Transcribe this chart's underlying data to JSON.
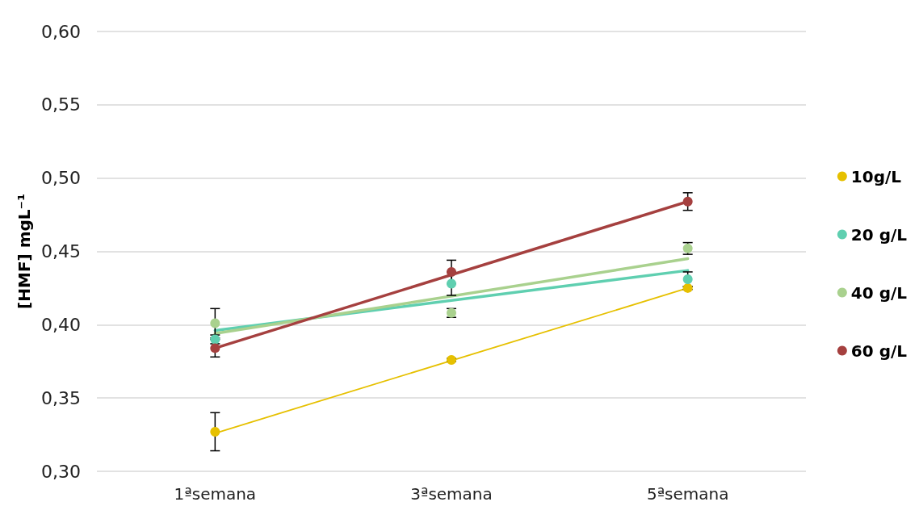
{
  "chart_data": {
    "type": "scatter",
    "ylabel": "[HMF] mgL⁻¹",
    "categories": [
      "1ªsemana",
      "3ªsemana",
      "5ªsemana"
    ],
    "ylim": [
      0.3,
      0.6
    ],
    "yticks": [
      {
        "value": 0.3,
        "label": "0,30"
      },
      {
        "value": 0.35,
        "label": "0,35"
      },
      {
        "value": 0.4,
        "label": "0,40"
      },
      {
        "value": 0.45,
        "label": "0,45"
      },
      {
        "value": 0.5,
        "label": "0,50"
      },
      {
        "value": 0.55,
        "label": "0,55"
      },
      {
        "value": 0.6,
        "label": "0,60"
      }
    ],
    "grid": "y",
    "legend": "right",
    "marker": "circle",
    "series": [
      {
        "name": "10g/L",
        "color": "#e6c000",
        "values": [
          0.327,
          0.376,
          0.425
        ],
        "errors": [
          0.013,
          0.001,
          0.001
        ]
      },
      {
        "name": "20 g/L",
        "color": "#5fcfb0",
        "values": [
          0.39,
          0.428,
          0.431
        ],
        "errors": [
          0.003,
          0.008,
          0.005
        ]
      },
      {
        "name": "40 g/L",
        "color": "#a9d18e",
        "values": [
          0.401,
          0.408,
          0.452
        ],
        "errors": [
          0.01,
          0.003,
          0.004
        ]
      },
      {
        "name": "60 g/L",
        "color": "#a5403f",
        "values": [
          0.384,
          0.436,
          0.484
        ],
        "errors": [
          0.006,
          0.008,
          0.006
        ]
      },
      {
        "type": "line",
        "marker": "none",
        "color": "#e6c000",
        "x": [
          "1ªsemana",
          "5ªsemana"
        ],
        "values": [
          0.326,
          0.425
        ]
      },
      {
        "type": "line",
        "marker": "none",
        "color": "#5fcfb0",
        "x": [
          "1ªsemana",
          "5ªsemana"
        ],
        "values": [
          0.396,
          0.437
        ]
      },
      {
        "type": "line",
        "marker": "none",
        "color": "#a9d18e",
        "x": [
          "1ªsemana",
          "5ªsemana"
        ],
        "values": [
          0.394,
          0.445
        ]
      },
      {
        "type": "line",
        "marker": "none",
        "color": "#a5403f",
        "x": [
          "1ªsemana",
          "5ªsemana"
        ],
        "values": [
          0.384,
          0.484
        ]
      }
    ]
  }
}
